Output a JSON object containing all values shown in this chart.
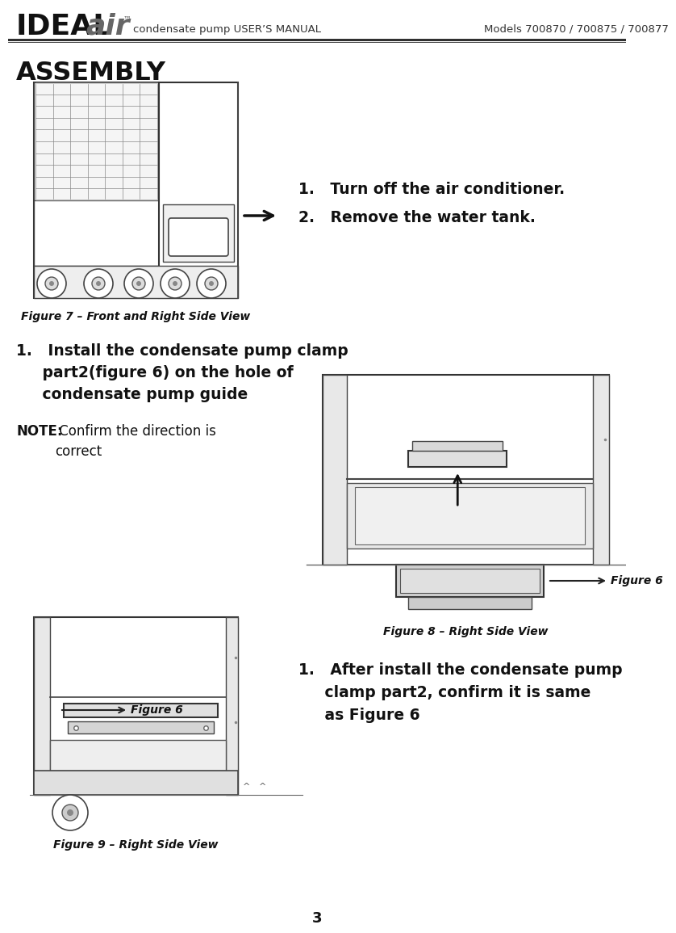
{
  "bg_color": "#ffffff",
  "header_line_color": "#222222",
  "header_manual_text": "condensate pump USER’S MANUAL",
  "header_models_text": "Models 700870 / 700875 / 700877",
  "section_title": "ASSEMBLY",
  "fig7_caption": "Figure 7 – Front and Right Side View",
  "step1_line1": "1.   Turn off the air conditioner.",
  "step1_line2": "2.   Remove the water tank.",
  "step2_bold": "1.   Install the condensate pump clamp\n     part2(figure 6) on the hole of\n     condensate pump guide",
  "step2_note_bold": "NOTE:",
  "step2_note_rest": " Confirm the direction is\ncorrect",
  "fig8_caption": "Figure 8 – Right Side View",
  "fig6_label": "Figure 6",
  "fig9_caption": "Figure 9 – Right Side View",
  "step3_text": "1.   After install the condensate pump\n     clamp part2, confirm it is same\n     as Figure 6",
  "page_number": "3",
  "text_color": "#111111",
  "caption_color": "#111111",
  "draw_color": "#333333",
  "light_gray": "#e0e0e0",
  "mid_gray": "#aaaaaa",
  "dark_gray": "#555555"
}
